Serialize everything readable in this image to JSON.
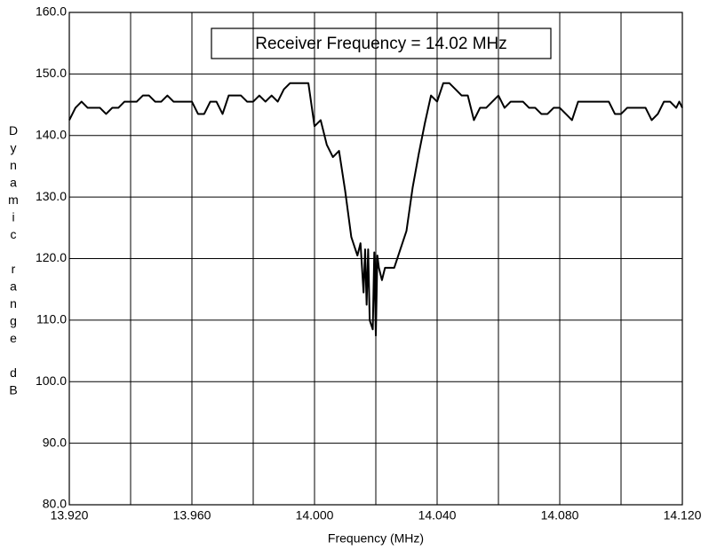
{
  "chart_data": {
    "type": "line",
    "annotation": "Receiver Frequency = 14.02 MHz",
    "x_label": "Frequency (MHz)",
    "y_label": "Dynamic range dB",
    "xlim": [
      13.92,
      14.12
    ],
    "ylim": [
      80,
      160
    ],
    "xticks": [
      {
        "value": 13.92,
        "label": "13.920"
      },
      {
        "value": 13.96,
        "label": "13.960"
      },
      {
        "value": 14.0,
        "label": "14.000"
      },
      {
        "value": 14.04,
        "label": "14.040"
      },
      {
        "value": 14.08,
        "label": "14.080"
      },
      {
        "value": 14.12,
        "label": "14.120"
      }
    ],
    "x_minor_grid": [
      13.94,
      13.98,
      14.02,
      14.06,
      14.1
    ],
    "yticks": [
      {
        "value": 80,
        "label": "80.0"
      },
      {
        "value": 90,
        "label": "90.0"
      },
      {
        "value": 100,
        "label": "100.0"
      },
      {
        "value": 110,
        "label": "110.0"
      },
      {
        "value": 120,
        "label": "120.0"
      },
      {
        "value": 130,
        "label": "130.0"
      },
      {
        "value": 140,
        "label": "140.0"
      },
      {
        "value": 150,
        "label": "150.0"
      },
      {
        "value": 160,
        "label": "160.0"
      }
    ],
    "grid": true,
    "series": [
      {
        "color": "#000000",
        "x": [
          13.92,
          13.922,
          13.924,
          13.926,
          13.928,
          13.93,
          13.932,
          13.934,
          13.936,
          13.938,
          13.94,
          13.942,
          13.944,
          13.946,
          13.948,
          13.95,
          13.952,
          13.954,
          13.956,
          13.958,
          13.96,
          13.962,
          13.964,
          13.966,
          13.968,
          13.97,
          13.972,
          13.974,
          13.976,
          13.978,
          13.98,
          13.982,
          13.984,
          13.986,
          13.988,
          13.99,
          13.992,
          13.994,
          13.996,
          13.998,
          14.0,
          14.002,
          14.004,
          14.006,
          14.008,
          14.01,
          14.012,
          14.014,
          14.015,
          14.016,
          14.0165,
          14.017,
          14.0175,
          14.018,
          14.019,
          14.0195,
          14.02,
          14.0205,
          14.021,
          14.022,
          14.023,
          14.026,
          14.028,
          14.03,
          14.032,
          14.034,
          14.036,
          14.038,
          14.04,
          14.042,
          14.044,
          14.046,
          14.048,
          14.05,
          14.052,
          14.054,
          14.056,
          14.058,
          14.06,
          14.062,
          14.064,
          14.066,
          14.068,
          14.07,
          14.072,
          14.074,
          14.076,
          14.078,
          14.08,
          14.082,
          14.084,
          14.086,
          14.088,
          14.09,
          14.092,
          14.094,
          14.096,
          14.098,
          14.1,
          14.102,
          14.104,
          14.106,
          14.108,
          14.11,
          14.112,
          14.114,
          14.116,
          14.118,
          14.119,
          14.12
        ],
        "values": [
          142.5,
          144.5,
          145.5,
          144.5,
          144.5,
          144.5,
          143.5,
          144.5,
          144.5,
          145.5,
          145.5,
          145.5,
          146.5,
          146.5,
          145.5,
          145.5,
          146.5,
          145.5,
          145.5,
          145.5,
          145.5,
          143.5,
          143.5,
          145.5,
          145.5,
          143.5,
          146.5,
          146.5,
          146.5,
          145.5,
          145.5,
          146.5,
          145.5,
          146.5,
          145.5,
          147.5,
          148.5,
          148.5,
          148.5,
          148.5,
          141.5,
          142.5,
          138.5,
          136.5,
          137.5,
          131,
          123.5,
          120.5,
          122.5,
          114.5,
          121.5,
          112.5,
          121.5,
          110,
          108.5,
          121,
          107.5,
          120.5,
          118.5,
          116.5,
          118.5,
          118.5,
          121.5,
          124.5,
          131.5,
          137,
          142,
          146.5,
          145.5,
          148.5,
          148.5,
          147.5,
          146.5,
          146.5,
          142.5,
          144.5,
          144.5,
          145.5,
          146.5,
          144.5,
          145.5,
          145.5,
          145.5,
          144.5,
          144.5,
          143.5,
          143.5,
          144.5,
          144.5,
          143.5,
          142.5,
          145.5,
          145.5,
          145.5,
          145.5,
          145.5,
          145.5,
          143.5,
          143.5,
          144.5,
          144.5,
          144.5,
          144.5,
          142.5,
          143.5,
          145.5,
          145.5,
          144.5,
          145.5,
          144.5
        ]
      }
    ]
  }
}
